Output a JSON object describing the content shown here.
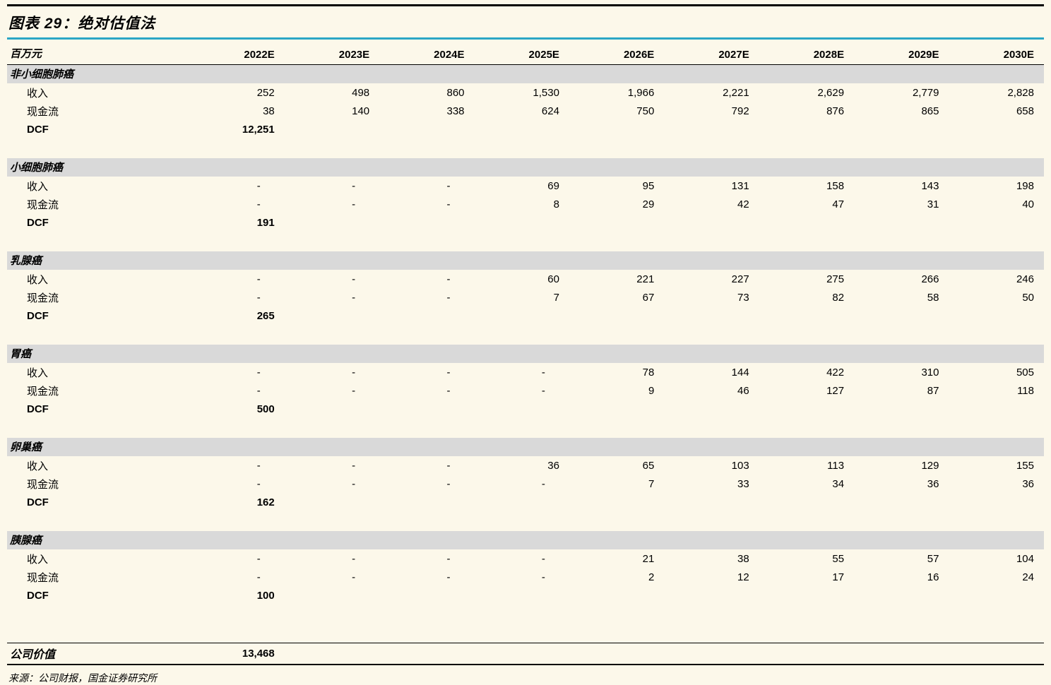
{
  "page": {
    "title": "图表 29：绝对估值法",
    "source": "来源：公司财报，国金证券研究所"
  },
  "colors": {
    "accent_teal": "#2BA6C5",
    "section_band_gray": "#D9D9D9",
    "page_background": "#FCF8EA"
  },
  "table": {
    "unit_label": "百万元",
    "years": [
      "2022E",
      "2023E",
      "2024E",
      "2025E",
      "2026E",
      "2027E",
      "2028E",
      "2029E",
      "2030E"
    ],
    "row_labels": {
      "revenue": "收入",
      "cashflow": "现金流",
      "dcf": "DCF"
    },
    "sections": [
      {
        "name": "非小细胞肺癌",
        "revenue": [
          "252",
          "498",
          "860",
          "1,530",
          "1,966",
          "2,221",
          "2,629",
          "2,779",
          "2,828"
        ],
        "cashflow": [
          "38",
          "140",
          "338",
          "624",
          "750",
          "792",
          "876",
          "865",
          "658"
        ],
        "dcf": "12,251"
      },
      {
        "name": "小细胞肺癌",
        "revenue": [
          "-",
          "-",
          "-",
          "69",
          "95",
          "131",
          "158",
          "143",
          "198"
        ],
        "cashflow": [
          "-",
          "-",
          "-",
          "8",
          "29",
          "42",
          "47",
          "31",
          "40"
        ],
        "dcf": "191"
      },
      {
        "name": "乳腺癌",
        "revenue": [
          "-",
          "-",
          "-",
          "60",
          "221",
          "227",
          "275",
          "266",
          "246"
        ],
        "cashflow": [
          "-",
          "-",
          "-",
          "7",
          "67",
          "73",
          "82",
          "58",
          "50"
        ],
        "dcf": "265"
      },
      {
        "name": "胃癌",
        "revenue": [
          "-",
          "-",
          "-",
          "-",
          "78",
          "144",
          "422",
          "310",
          "505"
        ],
        "cashflow": [
          "-",
          "-",
          "-",
          "-",
          "9",
          "46",
          "127",
          "87",
          "118"
        ],
        "dcf": "500"
      },
      {
        "name": "卵巢癌",
        "revenue": [
          "-",
          "-",
          "-",
          "36",
          "65",
          "103",
          "113",
          "129",
          "155"
        ],
        "cashflow": [
          "-",
          "-",
          "-",
          "-",
          "7",
          "33",
          "34",
          "36",
          "36"
        ],
        "dcf": "162"
      },
      {
        "name": "胰腺癌",
        "revenue": [
          "-",
          "-",
          "-",
          "-",
          "21",
          "38",
          "55",
          "57",
          "104"
        ],
        "cashflow": [
          "-",
          "-",
          "-",
          "-",
          "2",
          "12",
          "17",
          "16",
          "24"
        ],
        "dcf": "100"
      }
    ],
    "total": {
      "label": "公司价值",
      "value": "13,468"
    }
  }
}
